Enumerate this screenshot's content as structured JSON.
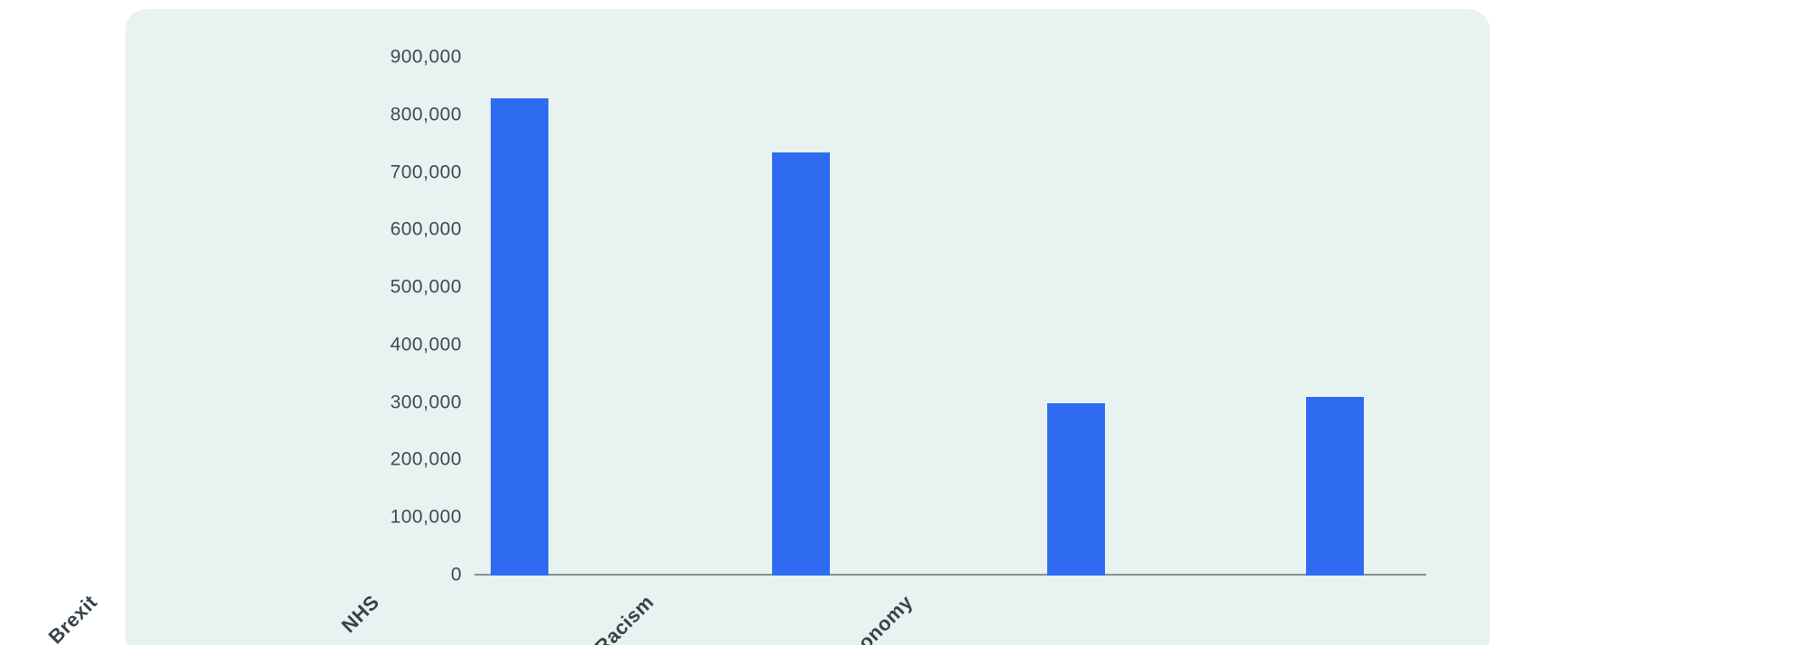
{
  "chart_data": {
    "type": "bar",
    "title": "",
    "xlabel": "",
    "ylabel": "",
    "categories": [
      "Brexit",
      "NHS",
      "Racism",
      "Economy"
    ],
    "values": [
      830000,
      735000,
      300000,
      310000
    ],
    "ylim": [
      0,
      900000
    ],
    "ytick_interval": 100000,
    "ytick_labels": [
      "0",
      "100,000",
      "200,000",
      "300,000",
      "400,000",
      "500,000",
      "600,000",
      "700,000",
      "800,000",
      "900,000"
    ],
    "grid": false,
    "legend": false,
    "category_label_rotation_deg": -45,
    "bar_center_fractions": [
      0.047,
      0.343,
      0.632,
      0.904
    ],
    "colors": {
      "bar": "#2e6bf1",
      "panel_background": "#e7f2f1",
      "page_background": "#ffffff",
      "axis_line": "#878e92",
      "tick_label": "#3f4b53",
      "category_label": "#36434c"
    }
  }
}
